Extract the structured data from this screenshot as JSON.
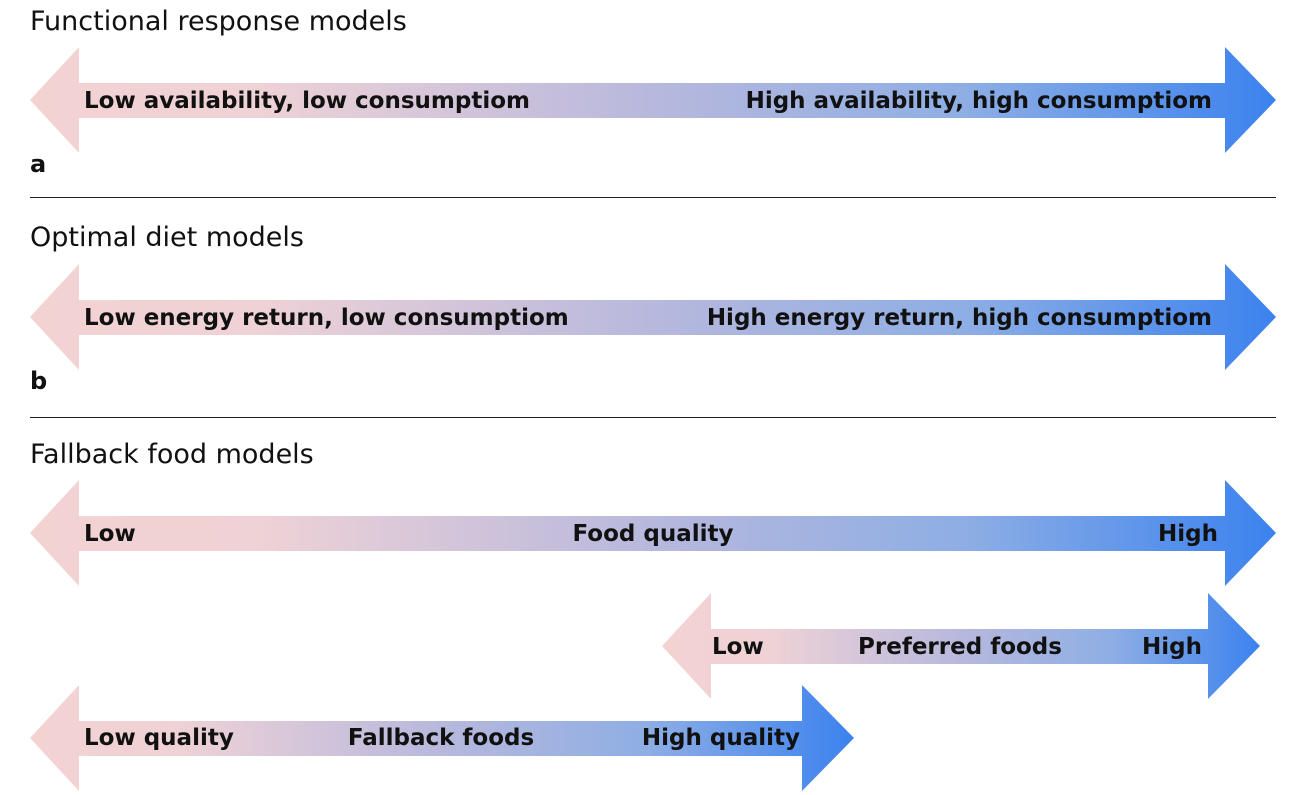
{
  "colors": {
    "low": "#f3d2d2",
    "mid": "#b7b8dd",
    "high": "#3b82ef"
  },
  "sections": [
    {
      "title": "Functional response models",
      "letter": "a",
      "arrows": [
        {
          "labels": {
            "left": "Low availability, low consumptiom",
            "right": "High availability, high consumptiom"
          }
        }
      ]
    },
    {
      "title": "Optimal diet models",
      "letter": "b",
      "arrows": [
        {
          "labels": {
            "left": "Low energy return, low consumptiom",
            "right": "High energy return, high consumptiom"
          }
        }
      ]
    },
    {
      "title": "Fallback food models",
      "letter": "",
      "arrows": [
        {
          "labels": {
            "left": "Low",
            "center": "Food quality",
            "right": "High"
          }
        },
        {
          "labels": {
            "left": "Low",
            "center": "Preferred foods",
            "right": "High"
          }
        },
        {
          "labels": {
            "left": "Low quality",
            "center": "Fallback foods",
            "right": "High quality"
          }
        }
      ]
    }
  ]
}
